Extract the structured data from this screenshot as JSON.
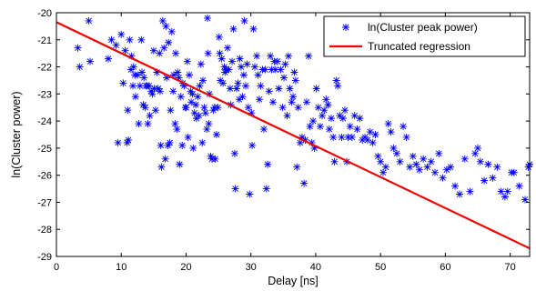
{
  "chart_data": {
    "type": "scatter",
    "xlabel": "Delay [ns]",
    "ylabel": "ln(Cluster power)",
    "xlim": [
      0,
      73
    ],
    "ylim": [
      -29,
      -20
    ],
    "xticks": [
      0,
      10,
      20,
      30,
      40,
      50,
      60,
      70
    ],
    "yticks": [
      -20,
      -21,
      -22,
      -23,
      -24,
      -25,
      -26,
      -27,
      -28,
      -29
    ],
    "grid": false,
    "legend_position": "top-right",
    "series": [
      {
        "name": "ln(Cluster peak power)",
        "marker": "asterisk",
        "color": "#0000ff",
        "points": [
          [
            3.3,
            -21.3
          ],
          [
            3.6,
            -22.0
          ],
          [
            5.0,
            -20.3
          ],
          [
            5.2,
            -21.8
          ],
          [
            8.0,
            -21.7
          ],
          [
            8.5,
            -21.0
          ],
          [
            9.2,
            -21.2
          ],
          [
            9.5,
            -24.8
          ],
          [
            10.0,
            -20.8
          ],
          [
            10.3,
            -22.6
          ],
          [
            10.6,
            -21.4
          ],
          [
            10.9,
            -24.8
          ],
          [
            11.0,
            -23.6
          ],
          [
            11.1,
            -24.7
          ],
          [
            11.3,
            -21.0
          ],
          [
            11.5,
            -22.1
          ],
          [
            11.6,
            -21.6
          ],
          [
            11.8,
            -22.7
          ],
          [
            11.9,
            -22.0
          ],
          [
            12.1,
            -22.3
          ],
          [
            12.2,
            -23.1
          ],
          [
            12.5,
            -22.3
          ],
          [
            12.7,
            -24.1
          ],
          [
            12.9,
            -22.7
          ],
          [
            13.1,
            -21.0
          ],
          [
            13.2,
            -22.2
          ],
          [
            13.4,
            -23.4
          ],
          [
            13.5,
            -22.4
          ],
          [
            13.7,
            -23.5
          ],
          [
            13.8,
            -22.7
          ],
          [
            14.0,
            -22.7
          ],
          [
            14.1,
            -24.1
          ],
          [
            14.3,
            -22.7
          ],
          [
            14.4,
            -23.8
          ],
          [
            14.6,
            -22.9
          ],
          [
            14.8,
            -23.0
          ],
          [
            15.0,
            -21.4
          ],
          [
            15.1,
            -22.8
          ],
          [
            15.3,
            -23.6
          ],
          [
            15.5,
            -22.2
          ],
          [
            15.7,
            -22.8
          ],
          [
            15.9,
            -21.5
          ],
          [
            16.0,
            -22.9
          ],
          [
            16.1,
            -24.9
          ],
          [
            16.2,
            -25.7
          ],
          [
            16.4,
            -20.3
          ],
          [
            16.6,
            -21.3
          ],
          [
            16.8,
            -25.4
          ],
          [
            16.9,
            -20.5
          ],
          [
            17.0,
            -22.4
          ],
          [
            17.2,
            -24.9
          ],
          [
            17.3,
            -21.1
          ],
          [
            17.5,
            -24.8
          ],
          [
            17.6,
            -23.6
          ],
          [
            17.8,
            -20.7
          ],
          [
            18.0,
            -22.9
          ],
          [
            18.1,
            -22.3
          ],
          [
            18.3,
            -24.1
          ],
          [
            18.4,
            -21.5
          ],
          [
            18.6,
            -24.3
          ],
          [
            18.7,
            -22.2
          ],
          [
            18.9,
            -22.4
          ],
          [
            19.0,
            -25.6
          ],
          [
            19.2,
            -23.1
          ],
          [
            19.4,
            -24.9
          ],
          [
            19.5,
            -22.6
          ],
          [
            19.7,
            -22.7
          ],
          [
            19.9,
            -23.5
          ],
          [
            20.0,
            -23.5
          ],
          [
            20.2,
            -21.8
          ],
          [
            20.3,
            -24.6
          ],
          [
            20.5,
            -22.3
          ],
          [
            20.7,
            -22.9
          ],
          [
            20.8,
            -23.3
          ],
          [
            21.0,
            -23.0
          ],
          [
            21.1,
            -25.0
          ],
          [
            21.3,
            -23.7
          ],
          [
            21.5,
            -23.4
          ],
          [
            21.6,
            -23.9
          ],
          [
            21.8,
            -23.1
          ],
          [
            22.0,
            -23.8
          ],
          [
            22.1,
            -22.7
          ],
          [
            22.3,
            -21.9
          ],
          [
            22.5,
            -24.8
          ],
          [
            22.6,
            -22.5
          ],
          [
            22.8,
            -23.5
          ],
          [
            23.0,
            -23.7
          ],
          [
            23.2,
            -24.3
          ],
          [
            23.3,
            -20.2
          ],
          [
            23.4,
            -21.5
          ],
          [
            23.5,
            -24.1
          ],
          [
            23.6,
            -23.0
          ],
          [
            23.8,
            -25.3
          ],
          [
            24.0,
            -25.4
          ],
          [
            24.2,
            -23.6
          ],
          [
            24.4,
            -23.5
          ],
          [
            24.5,
            -25.4
          ],
          [
            24.7,
            -24.5
          ],
          [
            24.9,
            -23.5
          ],
          [
            25.1,
            -20.9
          ],
          [
            25.2,
            -21.5
          ],
          [
            25.3,
            -22.5
          ],
          [
            25.5,
            -21.7
          ],
          [
            25.7,
            -22.6
          ],
          [
            25.9,
            -22.0
          ],
          [
            26.0,
            -22.2
          ],
          [
            26.2,
            -22.1
          ],
          [
            26.4,
            -21.3
          ],
          [
            26.6,
            -22.1
          ],
          [
            26.8,
            -22.8
          ],
          [
            26.9,
            -23.4
          ],
          [
            27.1,
            -21.8
          ],
          [
            27.3,
            -20.6
          ],
          [
            27.5,
            -25.2
          ],
          [
            27.6,
            -26.5
          ],
          [
            27.8,
            -22.8
          ],
          [
            28.0,
            -22.6
          ],
          [
            28.2,
            -23.2
          ],
          [
            28.3,
            -21.7
          ],
          [
            28.5,
            -22.0
          ],
          [
            28.7,
            -23.1
          ],
          [
            28.9,
            -22.3
          ],
          [
            29.0,
            -20.3
          ],
          [
            29.2,
            -22.7
          ],
          [
            29.4,
            -21.9
          ],
          [
            29.6,
            -23.5
          ],
          [
            29.8,
            -26.7
          ],
          [
            30.1,
            -23.7
          ],
          [
            30.2,
            -24.9
          ],
          [
            30.4,
            -20.6
          ],
          [
            30.6,
            -22.0
          ],
          [
            30.9,
            -21.6
          ],
          [
            31.1,
            -22.3
          ],
          [
            31.3,
            -23.2
          ],
          [
            31.5,
            -22.7
          ],
          [
            31.8,
            -22.1
          ],
          [
            32.0,
            -24.3
          ],
          [
            32.2,
            -22.1
          ],
          [
            32.4,
            -26.5
          ],
          [
            32.6,
            -25.6
          ],
          [
            32.8,
            -22.9
          ],
          [
            33.0,
            -21.6
          ],
          [
            33.2,
            -22.1
          ],
          [
            33.4,
            -23.3
          ],
          [
            33.6,
            -21.8
          ],
          [
            33.8,
            -22.1
          ],
          [
            34.1,
            -21.8
          ],
          [
            34.3,
            -22.8
          ],
          [
            34.6,
            -22.1
          ],
          [
            34.9,
            -23.5
          ],
          [
            35.1,
            -22.4
          ],
          [
            35.3,
            -21.9
          ],
          [
            35.6,
            -23.8
          ],
          [
            35.8,
            -21.6
          ],
          [
            36.0,
            -22.8
          ],
          [
            36.3,
            -23.3
          ],
          [
            36.5,
            -23.1
          ],
          [
            36.7,
            -22.2
          ],
          [
            36.9,
            -22.5
          ],
          [
            37.1,
            -25.7
          ],
          [
            37.3,
            -23.5
          ],
          [
            37.6,
            -24.8
          ],
          [
            37.9,
            -24.6
          ],
          [
            38.2,
            -26.3
          ],
          [
            38.4,
            -24.7
          ],
          [
            38.6,
            -23.3
          ],
          [
            38.9,
            -21.6
          ],
          [
            39.1,
            -24.2
          ],
          [
            39.4,
            -24.8
          ],
          [
            39.6,
            -24.0
          ],
          [
            39.8,
            -25.0
          ],
          [
            40.1,
            -22.8
          ],
          [
            40.4,
            -23.5
          ],
          [
            40.7,
            -24.2
          ],
          [
            41.0,
            -23.8
          ],
          [
            41.3,
            -23.6
          ],
          [
            41.6,
            -23.2
          ],
          [
            41.9,
            -23.4
          ],
          [
            42.1,
            -24.3
          ],
          [
            42.4,
            -23.9
          ],
          [
            42.7,
            -24.6
          ],
          [
            42.9,
            -25.5
          ],
          [
            43.2,
            -22.5
          ],
          [
            43.4,
            -22.7
          ],
          [
            43.7,
            -23.8
          ],
          [
            44.0,
            -24.6
          ],
          [
            44.2,
            -23.9
          ],
          [
            44.5,
            -23.6
          ],
          [
            44.8,
            -25.5
          ],
          [
            45.0,
            -24.6
          ],
          [
            45.3,
            -24.2
          ],
          [
            45.6,
            -24.6
          ],
          [
            46.0,
            -23.8
          ],
          [
            46.4,
            -24.3
          ],
          [
            46.8,
            -23.9
          ],
          [
            47.2,
            -24.7
          ],
          [
            47.6,
            -24.6
          ],
          [
            48.0,
            -24.7
          ],
          [
            48.4,
            -24.4
          ],
          [
            48.8,
            -24.8
          ],
          [
            49.2,
            -24.5
          ],
          [
            49.6,
            -25.3
          ],
          [
            50.0,
            -25.5
          ],
          [
            50.4,
            -25.9
          ],
          [
            50.8,
            -25.7
          ],
          [
            51.2,
            -24.1
          ],
          [
            51.6,
            -24.4
          ],
          [
            52.0,
            -25.0
          ],
          [
            52.5,
            -25.2
          ],
          [
            53.0,
            -25.5
          ],
          [
            53.5,
            -24.2
          ],
          [
            54.0,
            -24.6
          ],
          [
            54.5,
            -25.7
          ],
          [
            55.0,
            -25.3
          ],
          [
            55.5,
            -25.6
          ],
          [
            56.0,
            -25.8
          ],
          [
            56.6,
            -25.4
          ],
          [
            57.2,
            -25.7
          ],
          [
            57.8,
            -25.5
          ],
          [
            58.4,
            -25.9
          ],
          [
            59.0,
            -25.2
          ],
          [
            59.6,
            -26.1
          ],
          [
            60.2,
            -25.8
          ],
          [
            60.8,
            -25.7
          ],
          [
            61.5,
            -26.4
          ],
          [
            62.2,
            -26.7
          ],
          [
            63.0,
            -25.4
          ],
          [
            63.8,
            -26.6
          ],
          [
            64.6,
            -25.2
          ],
          [
            65.0,
            -25.0
          ],
          [
            65.4,
            -25.5
          ],
          [
            66.0,
            -26.2
          ],
          [
            66.6,
            -25.6
          ],
          [
            67.3,
            -26.1
          ],
          [
            68.0,
            -25.7
          ],
          [
            68.6,
            -26.6
          ],
          [
            69.2,
            -26.8
          ],
          [
            69.6,
            -26.6
          ],
          [
            70.2,
            -25.9
          ],
          [
            70.6,
            -25.9
          ],
          [
            71.4,
            -26.4
          ],
          [
            72.3,
            -26.9
          ],
          [
            72.8,
            -25.7
          ],
          [
            73.0,
            -25.6
          ]
        ]
      },
      {
        "name": "Truncated regression",
        "marker": "line",
        "color": "#ee0000",
        "points": [
          [
            0,
            -20.35
          ],
          [
            73,
            -28.7
          ]
        ]
      }
    ]
  }
}
